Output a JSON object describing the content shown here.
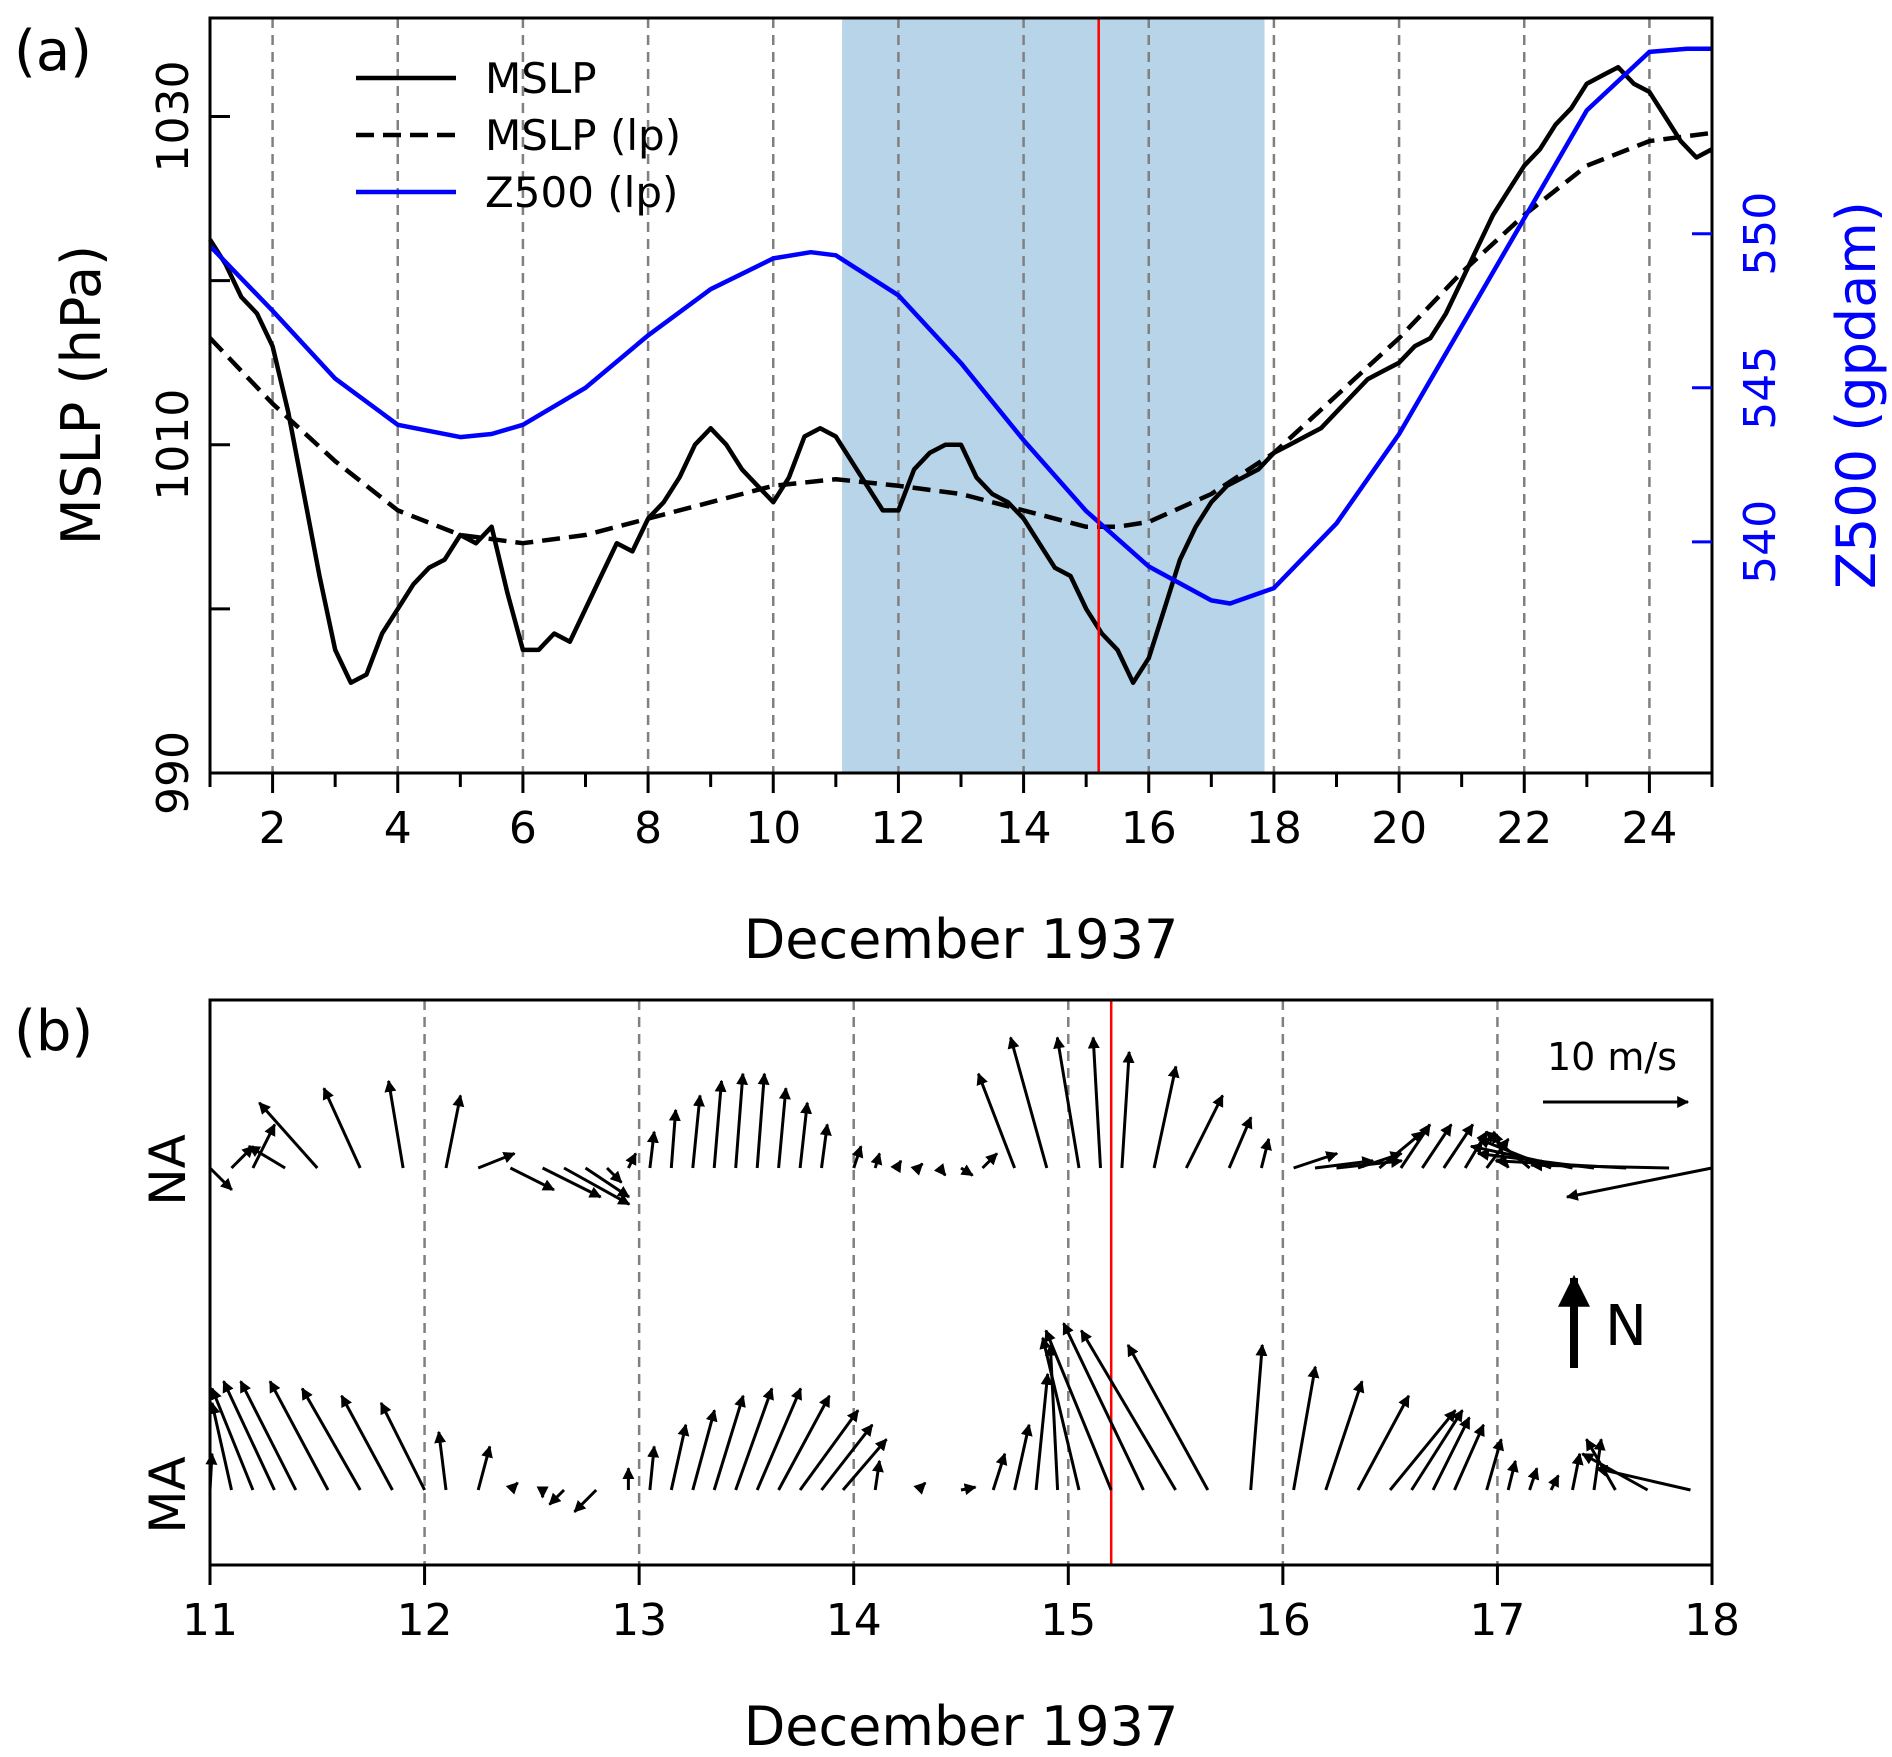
{
  "colors": {
    "black": "#000000",
    "blue": "#0000ff",
    "red": "#ff0000",
    "shade": "#b8d4e8",
    "grid": "#808080"
  },
  "chart_data": [
    {
      "panel": "(a)",
      "type": "line",
      "panel_label": "(a)",
      "xlabel": "December 1937",
      "ylabel": "MSLP (hPa)",
      "ylabel_right": "Z500 (gpdam)",
      "xlim": [
        1,
        25
      ],
      "ylim": [
        990,
        1036
      ],
      "ylim_right": [
        532.5,
        557.0
      ],
      "x_ticks": [
        2,
        4,
        6,
        8,
        10,
        12,
        14,
        16,
        18,
        20,
        22,
        24
      ],
      "y_ticks": [
        990,
        1010,
        1030
      ],
      "y_minor_ticks": [
        1000,
        1020
      ],
      "y_right_ticks": [
        540,
        545,
        550
      ],
      "vlines": [
        2,
        4,
        6,
        8,
        10,
        12,
        14,
        16,
        18,
        20,
        22,
        24
      ],
      "shaded_span": [
        11.1,
        17.85
      ],
      "event_line": 15.2,
      "legend": [
        "MSLP",
        "MSLP (lp)",
        "Z500 (lp)"
      ],
      "series": [
        {
          "name": "MSLP",
          "style": "solid",
          "color": "black",
          "axis": "left",
          "x": [
            1.0,
            1.25,
            1.5,
            1.75,
            2.0,
            2.25,
            2.5,
            2.75,
            3.0,
            3.25,
            3.5,
            3.75,
            4.0,
            4.25,
            4.5,
            4.75,
            5.0,
            5.25,
            5.5,
            5.75,
            6.0,
            6.25,
            6.5,
            6.75,
            7.0,
            7.25,
            7.5,
            7.75,
            8.0,
            8.25,
            8.5,
            8.75,
            9.0,
            9.25,
            9.5,
            9.75,
            10.0,
            10.25,
            10.5,
            10.75,
            11.0,
            11.25,
            11.5,
            11.75,
            12.0,
            12.25,
            12.5,
            12.75,
            13.0,
            13.25,
            13.5,
            13.75,
            14.0,
            14.25,
            14.5,
            14.75,
            15.0,
            15.25,
            15.5,
            15.75,
            16.0,
            16.25,
            16.5,
            16.75,
            17.0,
            17.25,
            17.5,
            17.75,
            18.0,
            18.25,
            18.5,
            18.75,
            19.0,
            19.25,
            19.5,
            19.75,
            20.0,
            20.25,
            20.5,
            20.75,
            21.0,
            21.25,
            21.5,
            21.75,
            22.0,
            22.25,
            22.5,
            22.75,
            23.0,
            23.25,
            23.5,
            23.75,
            24.0,
            24.25,
            24.5,
            24.75,
            25.0
          ],
          "values": [
            1022.5,
            1021.0,
            1019.0,
            1018.0,
            1016.0,
            1012.0,
            1007.0,
            1002.0,
            997.5,
            995.5,
            996.0,
            998.5,
            1000.0,
            1001.5,
            1002.5,
            1003.0,
            1004.5,
            1004.0,
            1005.0,
            1001.0,
            997.5,
            997.5,
            998.5,
            998.0,
            1000.0,
            1002.0,
            1004.0,
            1003.5,
            1005.5,
            1006.5,
            1008.0,
            1010.0,
            1011.0,
            1010.0,
            1008.5,
            1007.5,
            1006.5,
            1008.0,
            1010.5,
            1011.0,
            1010.5,
            1009.0,
            1007.5,
            1006.0,
            1006.0,
            1008.5,
            1009.5,
            1010.0,
            1010.0,
            1008.0,
            1007.0,
            1006.5,
            1005.5,
            1004.0,
            1002.5,
            1002.0,
            1000.0,
            998.5,
            997.5,
            995.5,
            997.0,
            1000.0,
            1003.0,
            1005.0,
            1006.5,
            1007.5,
            1008.0,
            1008.5,
            1009.5,
            1010.0,
            1010.5,
            1011.0,
            1012.0,
            1013.0,
            1014.0,
            1014.5,
            1015.0,
            1016.0,
            1016.5,
            1018.0,
            1020.0,
            1022.0,
            1024.0,
            1025.5,
            1027.0,
            1028.0,
            1029.5,
            1030.5,
            1032.0,
            1032.5,
            1033.0,
            1032.0,
            1031.5,
            1030.0,
            1028.5,
            1027.5,
            1028.0
          ]
        },
        {
          "name": "MSLP (lp)",
          "style": "dashed",
          "color": "black",
          "axis": "left",
          "x": [
            1.0,
            2.0,
            3.0,
            4.0,
            5.0,
            6.0,
            7.0,
            8.0,
            9.0,
            10.0,
            11.0,
            12.0,
            13.0,
            14.0,
            15.0,
            15.5,
            16.0,
            17.0,
            18.0,
            19.0,
            20.0,
            21.0,
            22.0,
            23.0,
            24.0,
            25.0
          ],
          "values": [
            1016.5,
            1012.5,
            1009.0,
            1006.0,
            1004.5,
            1004.0,
            1004.5,
            1005.5,
            1006.5,
            1007.5,
            1007.9,
            1007.5,
            1007.0,
            1006.0,
            1005.0,
            1005.0,
            1005.3,
            1007.0,
            1009.5,
            1013.0,
            1016.5,
            1020.5,
            1024.0,
            1027.0,
            1028.5,
            1029.0
          ]
        },
        {
          "name": "Z500 (lp)",
          "style": "solid",
          "color": "blue",
          "axis": "right",
          "x": [
            1.0,
            2.0,
            3.0,
            4.0,
            5.0,
            5.5,
            6.0,
            7.0,
            8.0,
            9.0,
            10.0,
            10.6,
            11.0,
            12.0,
            13.0,
            14.0,
            15.0,
            16.0,
            17.0,
            17.3,
            18.0,
            19.0,
            20.0,
            21.0,
            22.0,
            23.0,
            24.0,
            24.6,
            25.0
          ],
          "values": [
            549.6,
            547.5,
            545.3,
            543.8,
            543.4,
            543.5,
            543.8,
            545.0,
            546.7,
            548.2,
            549.2,
            549.4,
            549.3,
            548.0,
            545.8,
            543.3,
            541.0,
            539.2,
            538.1,
            538.0,
            538.5,
            540.6,
            543.5,
            547.0,
            550.5,
            554.0,
            555.9,
            556.0,
            556.0
          ]
        }
      ]
    },
    {
      "panel": "(b)",
      "type": "quiver",
      "panel_label": "(b)",
      "xlabel": "December 1937",
      "xlim": [
        11,
        18
      ],
      "x_ticks": [
        11,
        12,
        13,
        14,
        15,
        16,
        17,
        18
      ],
      "vlines": [
        12,
        13,
        14,
        15,
        16,
        17
      ],
      "event_line": 15.2,
      "rows": [
        "NA",
        "MA"
      ],
      "scale_label": "10 m/s",
      "scale_speed_ms": 10,
      "north_label": "N",
      "series": [
        {
          "name": "NA",
          "x": [
            11.0,
            11.1,
            11.2,
            11.35,
            11.5,
            11.7,
            11.9,
            12.1,
            12.25,
            12.4,
            12.55,
            12.65,
            12.75,
            12.85,
            12.95,
            13.05,
            13.15,
            13.25,
            13.35,
            13.45,
            13.55,
            13.65,
            13.75,
            13.85,
            14.0,
            14.1,
            14.2,
            14.3,
            14.4,
            14.5,
            14.6,
            14.75,
            14.9,
            15.05,
            15.15,
            15.25,
            15.4,
            15.55,
            15.75,
            15.9,
            16.05,
            16.15,
            16.25,
            16.35,
            16.45,
            16.55,
            16.65,
            16.75,
            16.85,
            16.95,
            17.05,
            17.15,
            17.25,
            17.35,
            17.45,
            17.6,
            17.8,
            18.0
          ],
          "u": [
            1.5,
            1.5,
            1.5,
            -2.5,
            -4.0,
            -2.5,
            -1.0,
            1.0,
            2.5,
            3.0,
            4.0,
            4.5,
            3.0,
            1.0,
            0.5,
            0.3,
            0.3,
            0.5,
            0.5,
            0.5,
            0.5,
            0.5,
            0.5,
            0.4,
            0.5,
            0.3,
            0.3,
            0.3,
            0.4,
            0.8,
            1.0,
            -2.5,
            -2.5,
            -1.5,
            -0.5,
            0.5,
            1.5,
            2.5,
            1.5,
            0.5,
            3.0,
            4.0,
            4.5,
            3.0,
            3.0,
            2.0,
            2.0,
            2.0,
            1.5,
            1.5,
            -1.0,
            -3.0,
            -5.0,
            -7.0,
            -8.0,
            -9.0,
            -9.5,
            -10.0
          ],
          "v": [
            -1.5,
            1.5,
            3.0,
            1.5,
            4.5,
            5.5,
            6.0,
            5.0,
            1.0,
            -1.5,
            -2.0,
            -2.5,
            -2.0,
            -1.0,
            1.0,
            2.5,
            4.0,
            5.0,
            6.0,
            6.5,
            6.5,
            5.5,
            4.5,
            3.0,
            1.5,
            1.0,
            0.5,
            0.3,
            -0.5,
            -0.5,
            1.0,
            6.5,
            9.0,
            9.0,
            9.0,
            8.0,
            7.0,
            5.0,
            3.5,
            2.0,
            1.0,
            0.5,
            0.5,
            1.0,
            2.5,
            3.0,
            3.0,
            3.0,
            2.5,
            2.0,
            2.5,
            2.5,
            2.0,
            1.5,
            1.0,
            0.5,
            0.2,
            -2.0
          ]
        },
        {
          "name": "MA",
          "x": [
            11.0,
            11.1,
            11.2,
            11.3,
            11.4,
            11.55,
            11.7,
            11.85,
            12.0,
            12.1,
            12.25,
            12.4,
            12.55,
            12.65,
            12.8,
            12.95,
            13.05,
            13.15,
            13.25,
            13.35,
            13.45,
            13.55,
            13.65,
            13.75,
            13.85,
            13.95,
            14.1,
            14.3,
            14.5,
            14.65,
            14.75,
            14.85,
            14.95,
            15.05,
            15.2,
            15.35,
            15.5,
            15.65,
            15.85,
            16.05,
            16.2,
            16.35,
            16.5,
            16.6,
            16.7,
            16.8,
            16.95,
            17.05,
            17.15,
            17.25,
            17.35,
            17.45,
            17.55,
            17.7,
            17.9
          ],
          "u": [
            -2.0,
            -2.0,
            -3.0,
            -3.5,
            -3.8,
            -4.0,
            -4.0,
            -3.5,
            -3.0,
            -0.5,
            0.8,
            0.5,
            0.0,
            -1.0,
            -1.5,
            0.0,
            0.3,
            1.0,
            1.5,
            2.0,
            2.5,
            3.0,
            3.5,
            4.0,
            3.5,
            3.0,
            0.3,
            0.5,
            1.0,
            0.8,
            1.0,
            0.8,
            -0.5,
            -2.5,
            -4.5,
            -5.5,
            -6.5,
            -5.5,
            0.8,
            1.5,
            2.5,
            3.5,
            4.5,
            3.5,
            2.5,
            2.0,
            1.0,
            0.5,
            0.5,
            0.5,
            0.5,
            0.5,
            -2.0,
            -4.5,
            -6.5
          ],
          "v": [
            2.5,
            6.0,
            7.0,
            7.5,
            7.5,
            7.5,
            7.0,
            6.5,
            6.0,
            4.0,
            3.0,
            0.5,
            -0.5,
            -1.0,
            -1.5,
            1.5,
            3.0,
            4.5,
            5.5,
            6.5,
            7.0,
            7.0,
            6.5,
            5.5,
            4.5,
            3.5,
            2.0,
            0.5,
            0.2,
            2.5,
            4.5,
            8.0,
            10.0,
            10.5,
            11.0,
            11.5,
            11.0,
            10.0,
            10.0,
            8.5,
            7.5,
            6.5,
            5.5,
            5.5,
            5.0,
            4.5,
            3.5,
            2.0,
            1.5,
            1.0,
            2.5,
            3.5,
            3.5,
            2.5,
            1.5
          ]
        }
      ]
    }
  ]
}
